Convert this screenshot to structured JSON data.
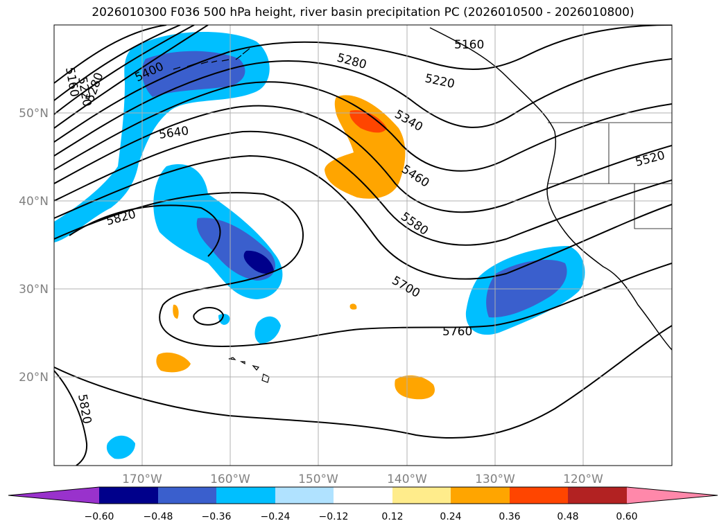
{
  "title": "2026010300 F036 500 hPa height, river basin precipitation PC (2026010500 - 2026010800)",
  "map": {
    "lat_labels": [
      "50°N",
      "40°N",
      "30°N",
      "20°N"
    ],
    "lon_labels": [
      "170°W",
      "160°W",
      "150°W",
      "140°W",
      "130°W",
      "120°W"
    ],
    "grid": true,
    "contour_color": "#000000",
    "height_contour_labels": [
      {
        "text": "5160",
        "rotation": 80
      },
      {
        "text": "5220",
        "rotation": 80
      },
      {
        "text": "5280",
        "rotation": -70
      },
      {
        "text": "5400",
        "rotation": -25
      },
      {
        "text": "5640",
        "rotation": -8
      },
      {
        "text": "5820",
        "rotation": -15
      },
      {
        "text": "5280",
        "rotation": 15
      },
      {
        "text": "5160",
        "rotation": 0
      },
      {
        "text": "5220",
        "rotation": 12
      },
      {
        "text": "5340",
        "rotation": 30
      },
      {
        "text": "5460",
        "rotation": 33
      },
      {
        "text": "5580",
        "rotation": 35
      },
      {
        "text": "5700",
        "rotation": 30
      },
      {
        "text": "5760",
        "rotation": 0
      },
      {
        "text": "5520",
        "rotation": -15
      },
      {
        "text": "5820",
        "rotation": 80
      }
    ]
  },
  "colorbar": {
    "ticks": [
      "−0.60",
      "−0.48",
      "−0.36",
      "−0.24",
      "−0.12",
      "0.12",
      "0.24",
      "0.36",
      "0.48",
      "0.60"
    ],
    "colors": [
      "#9932cc",
      "#00008b",
      "#3a5fcd",
      "#00bfff",
      "#b0e2ff",
      "#ffffff",
      "#ffec8b",
      "#ffa500",
      "#ff4500",
      "#b22222",
      "#ff88aa"
    ]
  }
}
